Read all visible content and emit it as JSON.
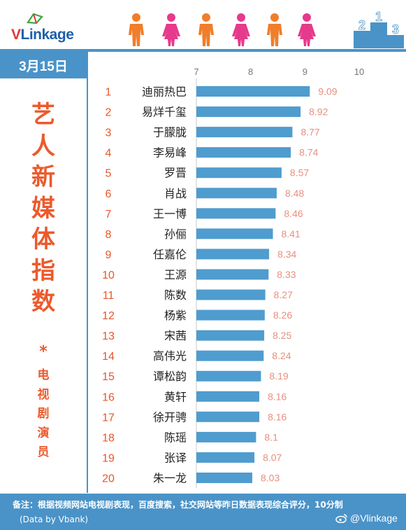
{
  "header": {
    "logo_v": "V",
    "logo_rest": "Linkage",
    "date": "3月15日",
    "podium_numbers": [
      "2",
      "1",
      "3"
    ]
  },
  "sidebar": {
    "title_chars": [
      "艺",
      "人",
      "新",
      "媒",
      "体",
      "指",
      "数"
    ],
    "star": "*",
    "subtitle_chars": [
      "电",
      "视",
      "剧",
      "演",
      "员"
    ]
  },
  "footer": {
    "note": "备注：根据视频网站电视剧表现，百度搜索，社交网站等昨日数据表现综合评分，10分制",
    "source": "(Data by Vbank)",
    "weibo": "@Vlinkage"
  },
  "colors": {
    "bar": "#4f9ccf",
    "accent": "#ec5a2c",
    "rank": "#e8572a",
    "value": "#e88f7f",
    "theme_blue": "#4a93c8",
    "male": "#f07e2a",
    "female": "#e63a8c"
  },
  "chart_data": {
    "type": "bar",
    "orientation": "horizontal",
    "xlim": [
      7,
      10
    ],
    "xticks": [
      7,
      8,
      9,
      10
    ],
    "ranks": [
      1,
      2,
      3,
      4,
      5,
      6,
      7,
      8,
      9,
      10,
      11,
      12,
      13,
      14,
      15,
      16,
      17,
      18,
      19,
      20
    ],
    "categories": [
      "迪丽热巴",
      "易烊千玺",
      "于朦胧",
      "李易峰",
      "罗晋",
      "肖战",
      "王一博",
      "孙俪",
      "任嘉伦",
      "王源",
      "陈数",
      "杨紫",
      "宋茜",
      "高伟光",
      "谭松韵",
      "黄轩",
      "徐开骋",
      "陈瑶",
      "张译",
      "朱一龙"
    ],
    "values": [
      9.09,
      8.92,
      8.77,
      8.74,
      8.57,
      8.48,
      8.46,
      8.41,
      8.34,
      8.33,
      8.27,
      8.26,
      8.25,
      8.24,
      8.19,
      8.16,
      8.16,
      8.1,
      8.07,
      8.03
    ],
    "value_labels": [
      "9.09",
      "8.92",
      "8.77",
      "8.74",
      "8.57",
      "8.48",
      "8.46",
      "8.41",
      "8.34",
      "8.33",
      "8.27",
      "8.26",
      "8.25",
      "8.24",
      "8.19",
      "8.16",
      "8.16",
      "8.1",
      "8.07",
      "8.03"
    ]
  }
}
